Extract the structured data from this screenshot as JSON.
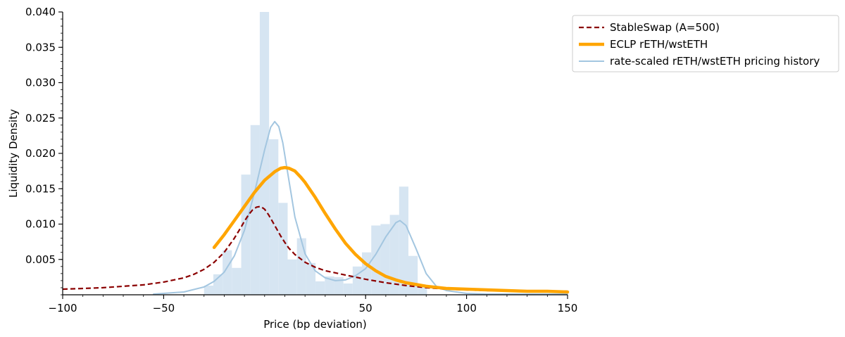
{
  "chart_data": {
    "type": "line",
    "title": "",
    "xlabel": "Price (bp deviation)",
    "ylabel": "Liquidity Density",
    "xlim": [
      -100,
      150
    ],
    "ylim": [
      0,
      0.04
    ],
    "x_ticks": [
      {
        "value": -100,
        "label": "−100"
      },
      {
        "value": -50,
        "label": "−50"
      },
      {
        "value": 50,
        "label": "50"
      },
      {
        "value": 100,
        "label": "100"
      },
      {
        "value": 150,
        "label": "150"
      }
    ],
    "y_ticks": [
      {
        "value": 0.005,
        "label": "0.005"
      },
      {
        "value": 0.01,
        "label": "0.010"
      },
      {
        "value": 0.015,
        "label": "0.015"
      },
      {
        "value": 0.02,
        "label": "0.020"
      },
      {
        "value": 0.025,
        "label": "0.025"
      },
      {
        "value": 0.03,
        "label": "0.030"
      },
      {
        "value": 0.035,
        "label": "0.035"
      },
      {
        "value": 0.04,
        "label": "0.040"
      }
    ],
    "x_minor_step": 10,
    "y_minor_step": 0.001,
    "grid": false,
    "legend": {
      "position": "top-right-outside",
      "entries": [
        {
          "series": "stableswap",
          "label": "StableSwap (A=500)"
        },
        {
          "series": "eclp",
          "label": "ECLP rETH/wstETH"
        },
        {
          "series": "history",
          "label": "rate-scaled rETH/wstETH pricing history"
        }
      ]
    },
    "series": [
      {
        "id": "stableswap",
        "name": "StableSwap (A=500)",
        "kind": "line",
        "style": "dashed",
        "color": "#8b0000",
        "x": [
          -100,
          -90,
          -80,
          -70,
          -60,
          -50,
          -40,
          -35,
          -30,
          -25,
          -20,
          -15,
          -12,
          -10,
          -8,
          -6,
          -4,
          -2,
          0,
          2,
          4,
          6,
          8,
          10,
          12,
          15,
          20,
          25,
          30,
          35,
          40,
          50,
          60,
          70,
          80,
          90,
          100,
          110,
          120,
          130,
          140,
          150
        ],
        "y": [
          0.0008,
          0.0009,
          0.001,
          0.0012,
          0.0014,
          0.0018,
          0.0024,
          0.0029,
          0.0036,
          0.0046,
          0.006,
          0.008,
          0.0094,
          0.0104,
          0.0113,
          0.012,
          0.0124,
          0.0125,
          0.0121,
          0.0113,
          0.0103,
          0.0093,
          0.0083,
          0.0074,
          0.0066,
          0.0057,
          0.0046,
          0.0039,
          0.0034,
          0.0031,
          0.0028,
          0.0022,
          0.0017,
          0.0013,
          0.001,
          0.0008,
          0.0007,
          0.0006,
          0.0006,
          0.0005,
          0.0005,
          0.0005
        ]
      },
      {
        "id": "eclp",
        "name": "ECLP rETH/wstETH",
        "kind": "line",
        "style": "solid",
        "color": "#ffa500",
        "x": [
          -25,
          -20,
          -15,
          -10,
          -5,
          0,
          5,
          8,
          10,
          12,
          15,
          18,
          20,
          25,
          30,
          35,
          40,
          45,
          50,
          55,
          60,
          65,
          70,
          80,
          90,
          100,
          110,
          120,
          130,
          140,
          150
        ],
        "y": [
          0.0067,
          0.0085,
          0.0105,
          0.0125,
          0.0145,
          0.0162,
          0.0174,
          0.0179,
          0.018,
          0.0179,
          0.0175,
          0.0166,
          0.0159,
          0.0138,
          0.0115,
          0.0093,
          0.0073,
          0.0057,
          0.0044,
          0.0034,
          0.0026,
          0.0021,
          0.0017,
          0.0012,
          0.0009,
          0.0008,
          0.0007,
          0.0006,
          0.0005,
          0.0005,
          0.0004
        ]
      },
      {
        "id": "history",
        "name": "rate-scaled rETH/wstETH pricing history",
        "kind": "line",
        "style": "solid",
        "color": "#a3c6e0",
        "x": [
          -55,
          -50,
          -40,
          -30,
          -25,
          -20,
          -15,
          -10,
          -5,
          0,
          3,
          5,
          7,
          9,
          11,
          13,
          15,
          20,
          25,
          30,
          35,
          40,
          45,
          50,
          55,
          60,
          65,
          67,
          70,
          75,
          80,
          85,
          90,
          100,
          110,
          120,
          130,
          140,
          150
        ],
        "y": [
          0.0001,
          0.0002,
          0.0004,
          0.0011,
          0.0019,
          0.0032,
          0.0055,
          0.0091,
          0.0145,
          0.0205,
          0.0237,
          0.0245,
          0.0238,
          0.0215,
          0.018,
          0.0145,
          0.011,
          0.0058,
          0.0034,
          0.0024,
          0.002,
          0.0021,
          0.0027,
          0.0037,
          0.0057,
          0.0082,
          0.0102,
          0.0105,
          0.0098,
          0.0065,
          0.003,
          0.0012,
          0.0006,
          0.0002,
          0.0001,
          0.0001,
          0.0001,
          0.0001,
          0.0001
        ]
      },
      {
        "id": "histogram",
        "name": "",
        "kind": "bar",
        "color": "#d6e5f2",
        "bin_width": 4.6,
        "bin_starts": [
          -30,
          -25.4,
          -20.8,
          -16.2,
          -11.6,
          -7,
          -2.4,
          2.2,
          6.8,
          11.4,
          16,
          20.6,
          25.2,
          29.8,
          34.4,
          39,
          43.6,
          48.2,
          52.8,
          57.4,
          62,
          66.6,
          71.2,
          75.8
        ],
        "values": [
          0.0013,
          0.0029,
          0.0063,
          0.0038,
          0.017,
          0.024,
          0.04,
          0.022,
          0.013,
          0.005,
          0.008,
          0.0045,
          0.0019,
          0.0026,
          0.0025,
          0.0016,
          0.004,
          0.006,
          0.0098,
          0.01,
          0.0113,
          0.0153,
          0.0055,
          0.001
        ]
      }
    ]
  }
}
